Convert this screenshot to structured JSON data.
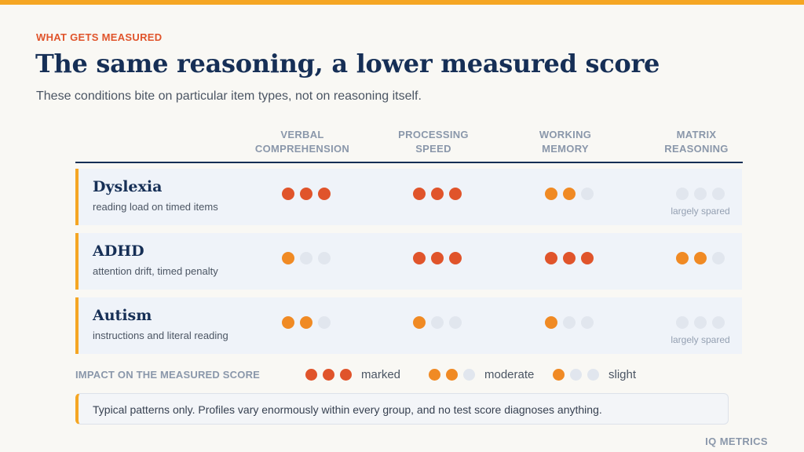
{
  "eyebrow": "WHAT GETS MEASURED",
  "title": "The same reasoning, a lower measured score",
  "subtitle": "These conditions bite on particular item types, not on reasoning itself.",
  "columns": [
    {
      "line1": "VERBAL",
      "line2": "COMPREHENSION"
    },
    {
      "line1": "PROCESSING",
      "line2": "SPEED"
    },
    {
      "line1": "WORKING",
      "line2": "MEMORY"
    },
    {
      "line1": "MATRIX",
      "line2": "REASONING"
    }
  ],
  "rows": [
    {
      "name": "Dyslexia",
      "desc": "reading load on timed items",
      "levels": [
        3,
        3,
        2,
        0
      ],
      "notes": [
        "",
        "",
        "",
        "largely spared"
      ]
    },
    {
      "name": "ADHD",
      "desc": "attention drift, timed penalty",
      "levels": [
        1,
        3,
        3,
        2
      ],
      "notes": [
        "",
        "",
        "",
        ""
      ]
    },
    {
      "name": "Autism",
      "desc": "instructions and literal reading",
      "levels": [
        2,
        1,
        1,
        0
      ],
      "notes": [
        "",
        "",
        "",
        "largely spared"
      ]
    }
  ],
  "legend": {
    "title": "IMPACT ON THE MEASURED SCORE",
    "marked": "marked",
    "moderate": "moderate",
    "slight": "slight"
  },
  "footnote": "Typical patterns only. Profiles vary enormously within every group, and no test score diagnoses anything.",
  "brand": "IQ METRICS",
  "colors": {
    "marked": "#e0542b",
    "moderate": "#f08a24",
    "empty": "#e1e6ee",
    "accent": "#f5a623",
    "navy": "#162f56"
  }
}
